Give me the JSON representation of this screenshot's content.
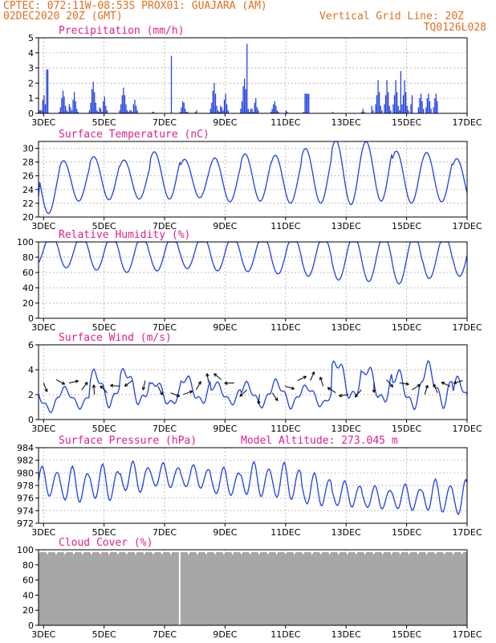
{
  "header": {
    "line1_left": "CPTEC:  072:11W-08:53S  PROX01: GUAJARA (AM)",
    "line2_left": "02DEC2020 20Z (GMT)",
    "line2_right": "Vertical Grid Line: 20Z",
    "line3_right": "TQ0126L028"
  },
  "colors": {
    "accent": "#e07020",
    "title": "#e0208a",
    "series": "#2040e0",
    "cloud": "#a6a6a6"
  },
  "chart_data": [
    {
      "type": "bar",
      "title": "Precipitation (mm/h)",
      "x_tick_labels": [
        "3DEC",
        "5DEC",
        "7DEC",
        "9DEC",
        "11DEC",
        "13DEC",
        "15DEC",
        "17DEC"
      ],
      "ylim": [
        0,
        5
      ],
      "y_ticks": [
        0,
        1,
        2,
        3,
        4,
        5
      ],
      "x_range_days": [
        2.833,
        17.0
      ],
      "hourly_values": [
        0.2,
        0.2,
        0.2,
        0.9,
        1.2,
        0.6,
        0.3,
        0.1,
        0.0,
        0.0,
        0.0,
        0.0,
        0.0,
        0.0,
        0.0,
        0.0,
        0.1,
        0.4,
        1.0,
        1.5,
        1.1,
        0.5,
        0.2,
        0.1,
        0.6,
        0.4,
        0.2,
        0.9,
        1.4,
        0.8,
        0.3,
        0.1,
        0.0,
        0.0,
        0.0,
        0.0,
        0.0,
        0.0,
        0.0,
        0.0,
        0.2,
        0.7,
        1.6,
        2.1,
        1.4,
        0.7,
        0.2,
        0.1,
        0.4,
        0.3,
        0.1,
        0.8,
        1.1,
        0.5,
        0.2,
        0.0,
        0.0,
        0.0,
        0.0,
        0.0,
        0.0,
        0.0,
        0.0,
        0.0,
        0.2,
        0.6,
        1.2,
        1.7,
        1.2,
        0.6,
        0.2,
        0.1,
        0.2,
        0.2,
        0.1,
        0.6,
        0.9,
        0.5,
        0.2,
        0.0,
        0.0,
        0.0,
        0.0,
        0.0,
        0.0,
        0.0,
        0.0,
        0.0,
        0.0,
        0.0,
        0.1,
        0.1,
        0.0,
        0.0,
        0.0,
        0.0,
        0.0,
        0.0,
        0.0,
        0.0,
        0.0,
        0.0,
        0.0,
        0.0,
        0.0,
        0.0,
        0.0,
        0.0,
        0.0,
        0.0,
        0.0,
        0.0,
        0.1,
        0.4,
        0.8,
        0.7,
        0.3,
        0.1,
        0.1,
        0.0,
        0.0,
        0.0,
        0.0,
        0.0,
        0.1,
        0.2,
        0.0,
        0.0,
        0.0,
        0.0,
        0.0,
        0.0,
        0.0,
        0.0,
        0.0,
        0.0,
        0.3,
        0.7,
        1.5,
        2.0,
        1.3,
        0.5,
        0.2,
        0.1,
        0.5,
        0.4,
        0.2,
        0.9,
        1.3,
        0.6,
        0.2,
        0.0,
        0.0,
        0.0,
        0.0,
        0.0,
        0.0,
        0.0,
        0.0,
        0.0,
        0.3,
        0.8,
        1.8,
        2.3,
        1.6,
        0.7,
        0.3,
        0.1,
        0.3,
        0.3,
        0.1,
        0.7,
        1.0,
        0.4,
        0.2,
        0.0,
        0.0,
        0.0,
        0.0,
        0.0,
        0.0,
        0.0,
        0.0,
        0.0,
        0.1,
        0.3,
        0.6,
        0.8,
        0.5,
        0.2,
        0.1,
        0.0,
        0.0,
        0.0,
        0.0,
        0.0,
        0.2,
        0.1,
        0.0,
        0.0,
        0.0,
        0.0,
        0.0,
        0.0,
        0.0,
        0.0,
        0.0,
        0.0,
        0.0,
        0.0,
        0.1,
        0.1,
        0.0,
        0.0,
        0.0,
        0.0,
        0.0,
        0.0,
        0.0,
        0.0,
        0.0,
        0.0,
        0.0,
        0.0,
        0.0,
        0.0,
        0.0,
        0.0,
        0.0,
        0.0,
        0.0,
        0.0,
        0.0,
        0.1,
        0.0,
        0.0,
        0.0,
        0.0,
        0.0,
        0.0,
        0.0,
        0.0,
        0.0,
        0.0,
        0.0,
        0.0,
        0.0,
        0.0,
        0.0,
        0.0,
        0.0,
        0.0,
        0.0,
        0.0,
        0.0,
        0.0,
        0.1,
        0.3,
        0.1,
        0.0,
        0.0,
        0.0,
        0.0,
        0.0,
        0.0,
        0.0,
        0.0,
        0.0,
        0.0,
        0.0,
        0.0,
        0.0,
        0.0,
        0.0,
        0.0,
        0.0,
        0.0,
        0.0,
        0.0,
        0.0,
        0.0,
        0.1,
        0.0,
        0.0,
        0.0,
        0.0,
        0.0,
        0.0,
        0.0,
        0.0,
        0.0,
        0.0,
        0.0,
        0.0,
        0.0,
        0.0,
        0.0,
        0.0,
        0.0,
        0.0,
        0.0,
        0.0,
        0.0,
        0.0,
        0.0,
        0.0,
        0.0,
        0.0,
        0.0,
        0.0,
        0.0,
        0.0,
        0.0,
        0.0,
        0.0,
        0.0,
        0.0,
        0.0,
        0.0,
        0.0,
        0.0,
        0.0,
        0.0,
        0.0,
        0.0,
        0.0,
        0.0,
        0.0,
        0.0,
        0.0,
        0.0,
        0.0,
        0.0,
        0.0,
        0.0,
        0.0,
        0.0,
        0.0,
        0.0,
        0.0,
        0.0,
        0.0,
        0.0,
        0.0,
        0.0,
        0.0,
        0.0,
        0.0,
        0.0,
        0.0
      ],
      "notable_peaks": [
        {
          "day": 3.1,
          "value": 2.9
        },
        {
          "day": 7.2,
          "value": 3.8
        },
        {
          "day": 9.7,
          "value": 4.6
        },
        {
          "day": 14.8,
          "value": 2.8
        }
      ]
    },
    {
      "type": "line",
      "title": "Surface Temperature (nC)",
      "x_tick_labels": [
        "3DEC",
        "5DEC",
        "7DEC",
        "9DEC",
        "11DEC",
        "13DEC",
        "15DEC",
        "17DEC"
      ],
      "ylim": [
        20,
        31
      ],
      "y_ticks": [
        20,
        22,
        24,
        26,
        28,
        30
      ],
      "daily_max": [
        28.0,
        28.2,
        28.8,
        28.3,
        29.5,
        28.4,
        28.6,
        29.2,
        29.0,
        30.0,
        31.2,
        31.0,
        29.6,
        29.4,
        28.5,
        31.0
      ],
      "daily_min": [
        20.5,
        22.3,
        22.5,
        22.6,
        22.6,
        22.8,
        22.2,
        22.3,
        22.0,
        22.0,
        21.8,
        22.3,
        22.0,
        22.2,
        22.0,
        22.0
      ],
      "max_hour_offset": 0.66,
      "min_hour_offset": 0.42
    },
    {
      "type": "line",
      "title": "Relative Humidity (%)",
      "x_tick_labels": [
        "3DEC",
        "5DEC",
        "7DEC",
        "9DEC",
        "11DEC",
        "13DEC",
        "15DEC",
        "17DEC"
      ],
      "ylim": [
        0,
        100
      ],
      "y_ticks": [
        0,
        20,
        40,
        60,
        80,
        100
      ],
      "daily_min": [
        70,
        66,
        63,
        60,
        62,
        65,
        62,
        61,
        58,
        55,
        50,
        48,
        45,
        52,
        55,
        48,
        45
      ],
      "daily_max": [
        100,
        100,
        100,
        100,
        100,
        100,
        100,
        100,
        100,
        100,
        100,
        100,
        100,
        100,
        100,
        100,
        100
      ]
    },
    {
      "type": "line",
      "title": "Surface Wind (m/s)",
      "x_tick_labels": [
        "3DEC",
        "5DEC",
        "7DEC",
        "9DEC",
        "11DEC",
        "13DEC",
        "15DEC",
        "17DEC"
      ],
      "ylim": [
        0,
        6
      ],
      "y_ticks": [
        0,
        2,
        4,
        6
      ],
      "daily_peak": [
        2.5,
        2.6,
        4.0,
        4.2,
        3.2,
        3.6,
        3.0,
        3.0,
        3.2,
        2.8,
        5.0,
        4.4,
        4.0,
        4.6,
        3.4,
        3.6
      ],
      "daily_low": [
        0.6,
        0.9,
        1.0,
        1.1,
        1.0,
        1.2,
        1.2,
        1.0,
        0.9,
        1.0,
        1.4,
        1.2,
        0.8,
        1.0,
        0.6,
        0.8
      ]
    },
    {
      "type": "line",
      "title": "Surface Pressure (hPa)",
      "annotation": "Model Altitude: 273.045 m",
      "x_tick_labels": [
        "3DEC",
        "5DEC",
        "7DEC",
        "9DEC",
        "11DEC",
        "13DEC",
        "15DEC",
        "17DEC"
      ],
      "ylim": [
        972,
        984
      ],
      "y_ticks": [
        972,
        974,
        976,
        978,
        980,
        982,
        984
      ],
      "daily_mean": [
        978.5,
        978.0,
        978.3,
        979.2,
        979.5,
        979.3,
        978.5,
        978.8,
        978.5,
        977.2,
        976.5,
        976.0,
        976.0,
        976.2,
        975.8,
        975.5
      ]
    },
    {
      "type": "area",
      "title": "Cloud Cover (%)",
      "x_tick_labels": [
        "3DEC",
        "5DEC",
        "7DEC",
        "9DEC",
        "11DEC",
        "13DEC",
        "15DEC",
        "17DEC"
      ],
      "ylim": [
        0,
        100
      ],
      "y_ticks": [
        0,
        20,
        40,
        60,
        80,
        100
      ],
      "typical_value": 97,
      "clear_gap_day": 7.5
    }
  ]
}
